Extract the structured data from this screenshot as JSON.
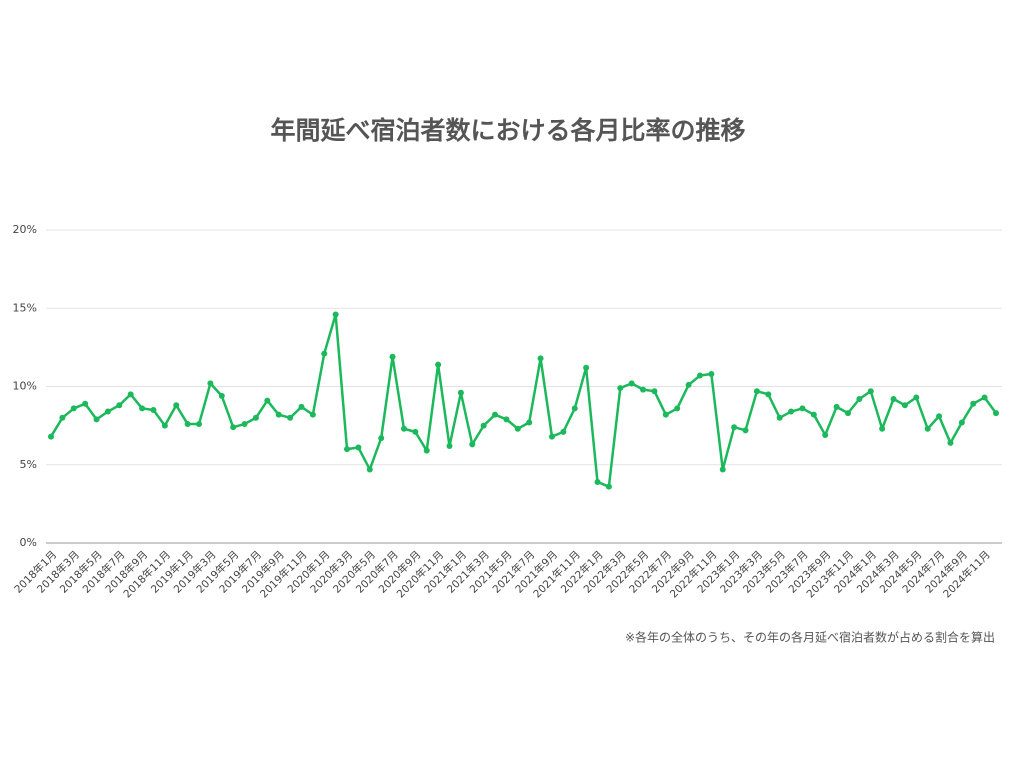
{
  "chart_data": {
    "type": "line",
    "title": "年間延べ宿泊者数における各月比率の推移",
    "note": "※各年の全体のうち、その年の各月延べ宿泊者数が占める割合を算出",
    "categories": [
      "2018年1月",
      null,
      "2018年3月",
      null,
      "2018年5月",
      null,
      "2018年7月",
      null,
      "2018年9月",
      null,
      "2018年11月",
      null,
      "2019年1月",
      null,
      "2019年3月",
      null,
      "2019年5月",
      null,
      "2019年7月",
      null,
      "2019年9月",
      null,
      "2019年11月",
      null,
      "2020年1月",
      null,
      "2020年3月",
      null,
      "2020年5月",
      null,
      "2020年7月",
      null,
      "2020年9月",
      null,
      "2020年11月",
      null,
      "2021年1月",
      null,
      "2021年3月",
      null,
      "2021年5月",
      null,
      "2021年7月",
      null,
      "2021年9月",
      null,
      "2021年11月",
      null,
      "2022年1月",
      null,
      "2022年3月",
      null,
      "2022年5月",
      null,
      "2022年7月",
      null,
      "2022年9月",
      null,
      "2022年11月",
      null,
      "2023年1月",
      null,
      "2023年3月",
      null,
      "2023年5月",
      null,
      "2023年7月",
      null,
      "2023年9月",
      null,
      "2023年11月",
      null,
      "2024年1月",
      null,
      "2024年3月",
      null,
      "2024年5月",
      null,
      "2024年7月",
      null,
      "2024年9月",
      null,
      "2024年11月",
      null
    ],
    "series": [
      {
        "color": "#1cb85c",
        "values": [
          6.8,
          8.0,
          8.6,
          8.9,
          7.9,
          8.4,
          8.8,
          9.5,
          8.6,
          8.5,
          7.5,
          8.8,
          7.6,
          7.6,
          10.2,
          9.4,
          7.4,
          7.6,
          8.0,
          9.1,
          8.2,
          8.0,
          8.7,
          8.2,
          12.1,
          14.6,
          6.0,
          6.1,
          4.7,
          6.7,
          11.9,
          7.3,
          7.1,
          5.9,
          11.4,
          6.2,
          9.6,
          6.3,
          7.5,
          8.2,
          7.9,
          7.3,
          7.7,
          11.8,
          6.8,
          7.1,
          8.6,
          11.2,
          3.9,
          3.6,
          9.9,
          10.2,
          9.8,
          9.7,
          8.2,
          8.6,
          10.1,
          10.7,
          10.8,
          4.7,
          7.4,
          7.2,
          9.7,
          9.5,
          8.0,
          8.4,
          8.6,
          8.2,
          6.9,
          8.7,
          8.3,
          9.2,
          9.7,
          7.3,
          9.2,
          8.8,
          9.3,
          7.3,
          8.1,
          6.4,
          7.7,
          8.9,
          9.3,
          8.3
        ]
      }
    ],
    "ylim": [
      0,
      20
    ],
    "yticks": [
      {
        "value": 0,
        "label": "0%"
      },
      {
        "value": 5,
        "label": "5%"
      },
      {
        "value": 10,
        "label": "10%"
      },
      {
        "value": 15,
        "label": "15%"
      },
      {
        "value": 20,
        "label": "20%"
      }
    ],
    "grid": true
  }
}
